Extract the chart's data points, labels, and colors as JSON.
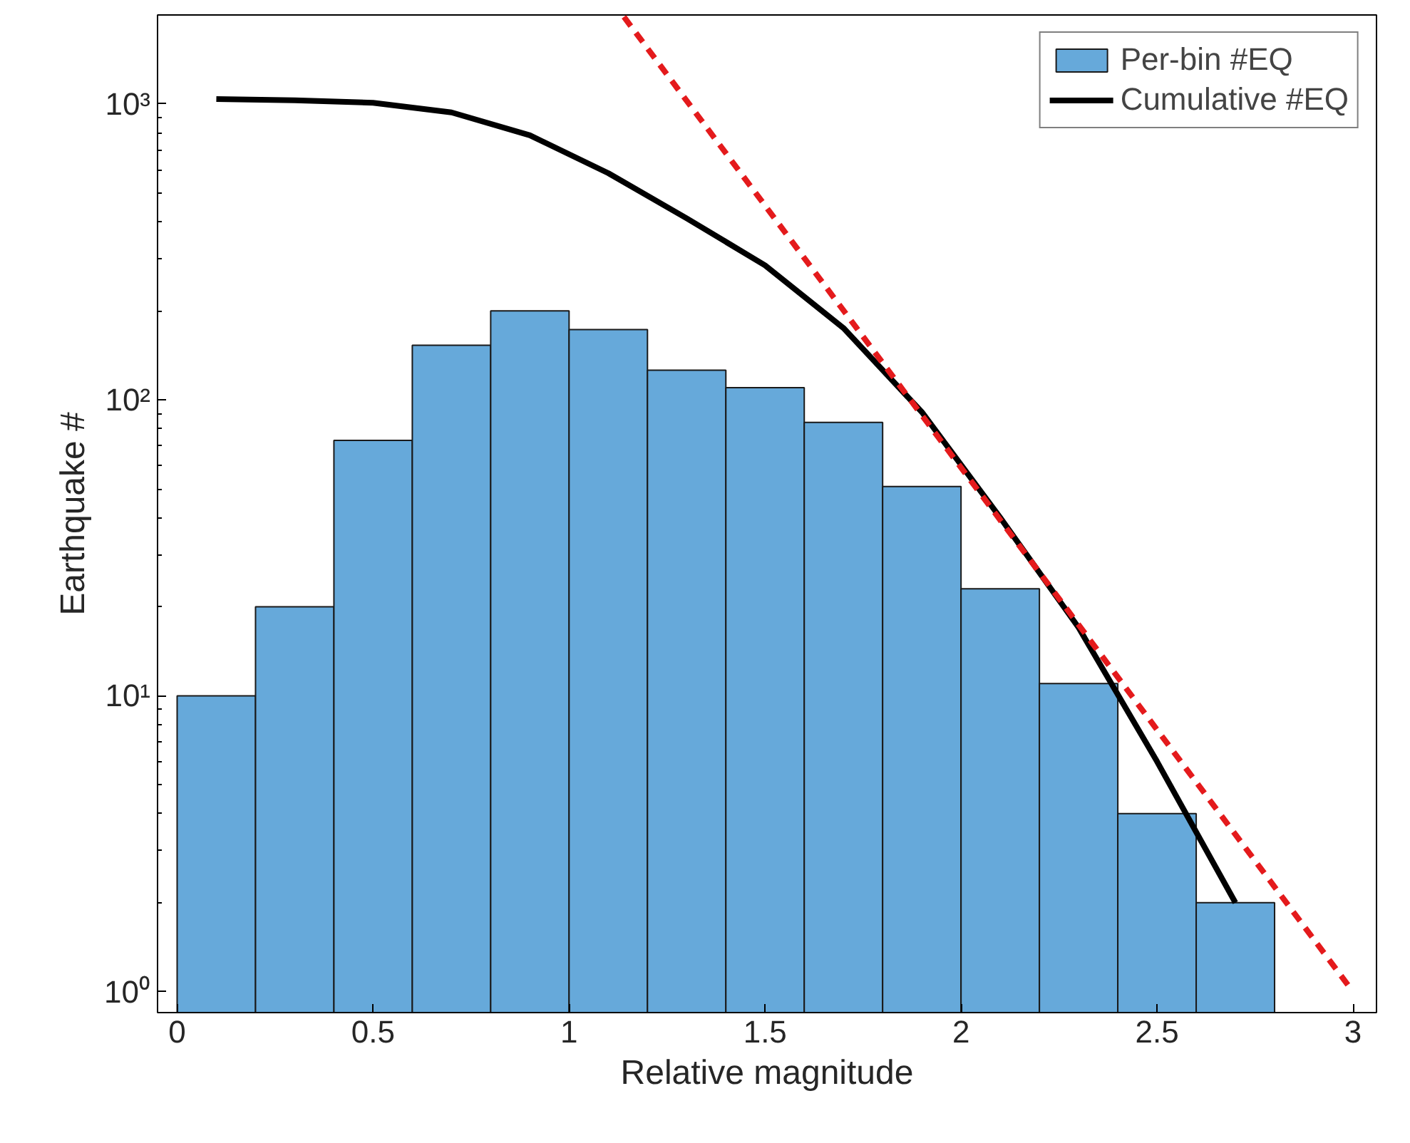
{
  "chart_data": {
    "type": "histogram",
    "xlabel": "Relative magnitude",
    "ylabel": "Earthquake #",
    "xlim": [
      -0.05,
      3.06
    ],
    "xticks": [
      0,
      0.5,
      1,
      1.5,
      2,
      2.5,
      3
    ],
    "ylim": [
      0.85,
      2000
    ],
    "yticks": [
      {
        "value": 1,
        "label": "10⁰"
      },
      {
        "value": 10,
        "label": "10¹"
      },
      {
        "value": 100,
        "label": "10²"
      },
      {
        "value": 1000,
        "label": "10³"
      }
    ],
    "log": "y",
    "grid": false,
    "legend": "top right",
    "series": [
      {
        "name": "Per-bin #EQ",
        "color": "#66a9da",
        "bins": [
          0,
          0.2,
          0.4,
          0.6,
          0.8,
          1.0,
          1.2,
          1.4,
          1.6,
          1.8,
          2.0,
          2.2,
          2.4,
          2.6,
          2.8
        ],
        "values": [
          10,
          20,
          73,
          153,
          200,
          173,
          126,
          110,
          84,
          51,
          23,
          11,
          4,
          2
        ]
      },
      {
        "type": "line",
        "name": "Cumulative #EQ",
        "color": "#000000",
        "line_style": "solid",
        "x": [
          0.1,
          0.3,
          0.5,
          0.7,
          0.9,
          1.1,
          1.3,
          1.5,
          1.7,
          1.9,
          2.1,
          2.3,
          2.5,
          2.7
        ],
        "values": [
          1040,
          1030,
          1010,
          937,
          784,
          584,
          411,
          285,
          175,
          91,
          40,
          17,
          6,
          2
        ]
      },
      {
        "type": "line",
        "color": "#e41a1c",
        "line_style": "dashed",
        "x": [
          1.14,
          3.0
        ],
        "values": [
          1970,
          1.0
        ]
      }
    ]
  }
}
